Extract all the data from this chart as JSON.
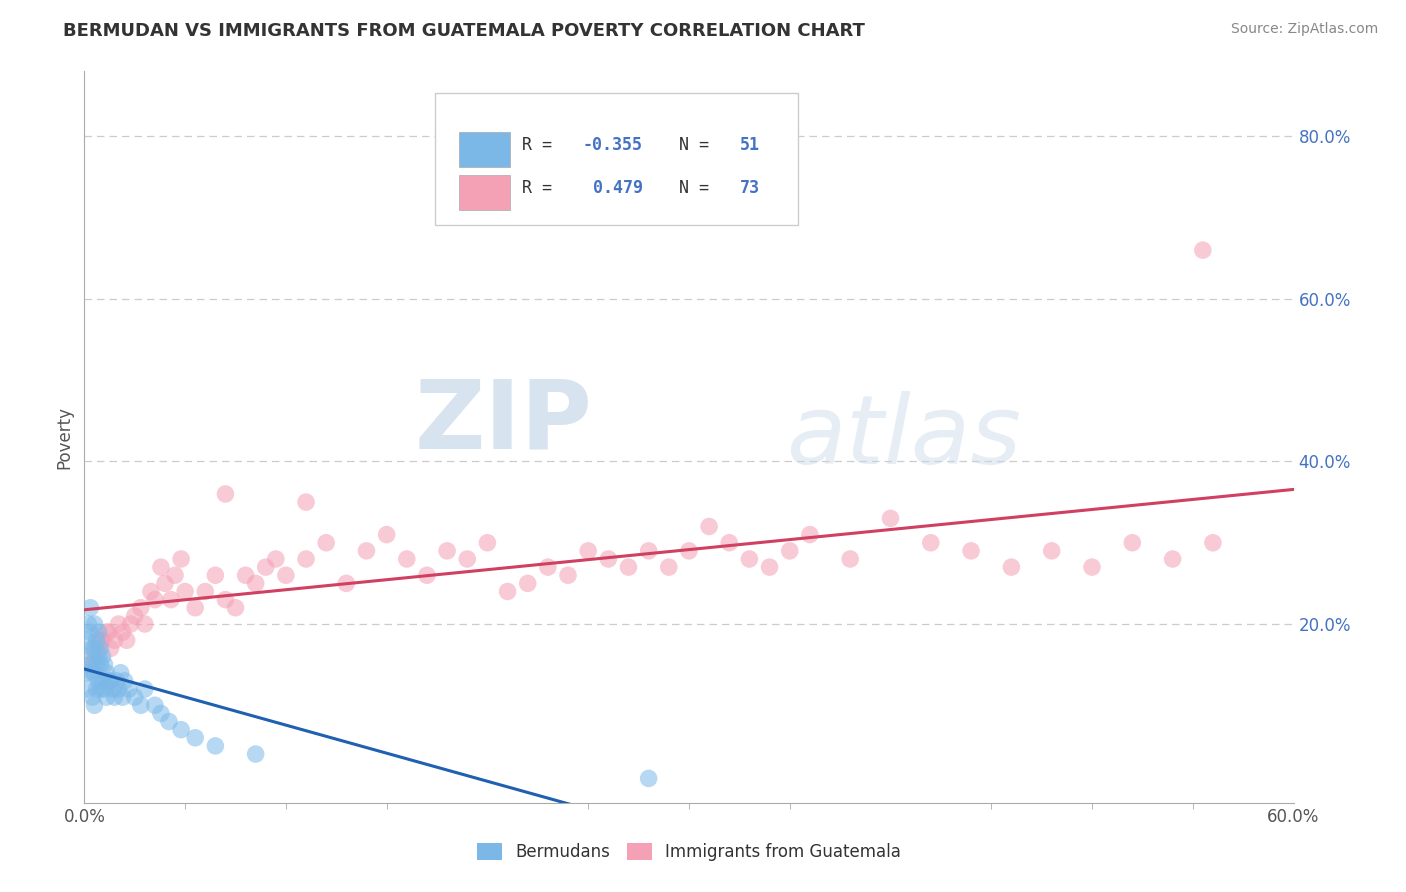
{
  "title": "BERMUDAN VS IMMIGRANTS FROM GUATEMALA POVERTY CORRELATION CHART",
  "source": "Source: ZipAtlas.com",
  "ylabel": "Poverty",
  "xlim": [
    0.0,
    0.6
  ],
  "ylim": [
    -0.02,
    0.88
  ],
  "xticks": [
    0.0,
    0.2,
    0.4,
    0.6
  ],
  "xticklabels": [
    "0.0%",
    "",
    "",
    "60.0%"
  ],
  "ytick_positions": [
    0.2,
    0.4,
    0.6,
    0.8
  ],
  "yticklabels": [
    "20.0%",
    "40.0%",
    "60.0%",
    "80.0%"
  ],
  "bermuda_color": "#7bb8e8",
  "guatemala_color": "#f4a0b5",
  "bermuda_line_color": "#2060b0",
  "guatemala_line_color": "#d04060",
  "R_bermuda": -0.355,
  "N_bermuda": 51,
  "R_guatemala": 0.479,
  "N_guatemala": 73,
  "legend_label_bermuda": "Bermudans",
  "legend_label_guatemala": "Immigrants from Guatemala",
  "watermark_zip": "ZIP",
  "watermark_atlas": "atlas",
  "background_color": "#ffffff",
  "grid_color": "#cccccc",
  "bermuda_x": [
    0.001,
    0.001,
    0.002,
    0.002,
    0.002,
    0.003,
    0.003,
    0.003,
    0.004,
    0.004,
    0.004,
    0.005,
    0.005,
    0.005,
    0.005,
    0.006,
    0.006,
    0.006,
    0.007,
    0.007,
    0.007,
    0.008,
    0.008,
    0.008,
    0.009,
    0.009,
    0.01,
    0.01,
    0.011,
    0.011,
    0.012,
    0.013,
    0.014,
    0.015,
    0.016,
    0.017,
    0.018,
    0.019,
    0.02,
    0.022,
    0.025,
    0.028,
    0.03,
    0.035,
    0.038,
    0.042,
    0.048,
    0.055,
    0.065,
    0.085,
    0.28
  ],
  "bermuda_y": [
    0.18,
    0.14,
    0.2,
    0.16,
    0.12,
    0.22,
    0.19,
    0.15,
    0.17,
    0.14,
    0.11,
    0.2,
    0.17,
    0.14,
    0.1,
    0.18,
    0.15,
    0.12,
    0.19,
    0.16,
    0.13,
    0.17,
    0.15,
    0.12,
    0.16,
    0.13,
    0.15,
    0.12,
    0.14,
    0.11,
    0.13,
    0.13,
    0.12,
    0.11,
    0.13,
    0.12,
    0.14,
    0.11,
    0.13,
    0.12,
    0.11,
    0.1,
    0.12,
    0.1,
    0.09,
    0.08,
    0.07,
    0.06,
    0.05,
    0.04,
    0.01
  ],
  "guatemala_x": [
    0.003,
    0.005,
    0.007,
    0.009,
    0.011,
    0.013,
    0.015,
    0.017,
    0.019,
    0.021,
    0.023,
    0.025,
    0.028,
    0.03,
    0.033,
    0.035,
    0.038,
    0.04,
    0.043,
    0.045,
    0.048,
    0.05,
    0.055,
    0.06,
    0.065,
    0.07,
    0.075,
    0.08,
    0.085,
    0.09,
    0.095,
    0.1,
    0.11,
    0.12,
    0.13,
    0.14,
    0.15,
    0.16,
    0.17,
    0.18,
    0.19,
    0.2,
    0.21,
    0.22,
    0.23,
    0.24,
    0.25,
    0.26,
    0.27,
    0.28,
    0.29,
    0.3,
    0.31,
    0.32,
    0.33,
    0.34,
    0.35,
    0.36,
    0.38,
    0.4,
    0.42,
    0.44,
    0.46,
    0.48,
    0.5,
    0.52,
    0.54,
    0.56,
    0.008,
    0.012,
    0.07,
    0.11,
    0.555
  ],
  "guatemala_y": [
    0.15,
    0.16,
    0.17,
    0.18,
    0.19,
    0.17,
    0.18,
    0.2,
    0.19,
    0.18,
    0.2,
    0.21,
    0.22,
    0.2,
    0.24,
    0.23,
    0.27,
    0.25,
    0.23,
    0.26,
    0.28,
    0.24,
    0.22,
    0.24,
    0.26,
    0.23,
    0.22,
    0.26,
    0.25,
    0.27,
    0.28,
    0.26,
    0.28,
    0.3,
    0.25,
    0.29,
    0.31,
    0.28,
    0.26,
    0.29,
    0.28,
    0.3,
    0.24,
    0.25,
    0.27,
    0.26,
    0.29,
    0.28,
    0.27,
    0.29,
    0.27,
    0.29,
    0.32,
    0.3,
    0.28,
    0.27,
    0.29,
    0.31,
    0.28,
    0.33,
    0.3,
    0.29,
    0.27,
    0.29,
    0.27,
    0.3,
    0.28,
    0.3,
    0.18,
    0.19,
    0.36,
    0.35,
    0.66
  ]
}
